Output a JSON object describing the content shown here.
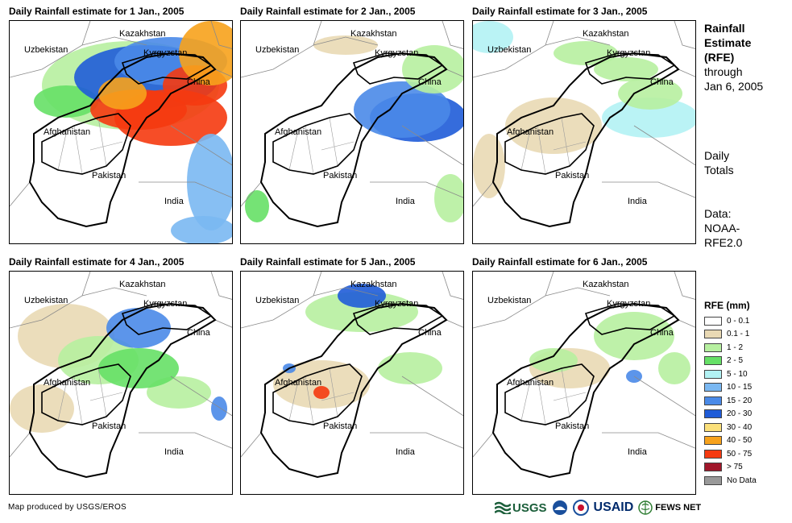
{
  "panels": [
    {
      "title": "Daily Rainfall estimate for 1 Jan., 2005"
    },
    {
      "title": "Daily Rainfall estimate for 2 Jan., 2005"
    },
    {
      "title": "Daily Rainfall estimate for 3 Jan., 2005"
    },
    {
      "title": "Daily Rainfall estimate for 4 Jan., 2005"
    },
    {
      "title": "Daily Rainfall estimate for 5 Jan., 2005"
    },
    {
      "title": "Daily Rainfall estimate for 6 Jan., 2005"
    }
  ],
  "place_labels": {
    "uzbekistan": "Uzbekistan",
    "kazakhstan": "Kazakhstan",
    "kyrgyzstan": "Kyrgyzstan",
    "china": "China",
    "afghanistan": "Afghanistan",
    "pakistan": "Pakistan",
    "india": "India"
  },
  "sidebar": {
    "title_line1": "Rainfall",
    "title_line2": "Estimate",
    "title_line3": "(RFE)",
    "through": "through",
    "date": "Jan 6, 2005",
    "daily1": "Daily",
    "daily2": "Totals",
    "data1": "Data:",
    "data2": "NOAA-",
    "data3": "RFE2.0"
  },
  "legend": {
    "title": "RFE (mm)",
    "items": [
      {
        "label": "0 - 0.1",
        "color": "#ffffff"
      },
      {
        "label": "0.1 - 1",
        "color": "#e9d9b4"
      },
      {
        "label": "1 - 2",
        "color": "#b7f0a0"
      },
      {
        "label": "2 - 5",
        "color": "#66e066"
      },
      {
        "label": "5 - 10",
        "color": "#b2f2f4"
      },
      {
        "label": "10 - 15",
        "color": "#7ab8f2"
      },
      {
        "label": "15 - 20",
        "color": "#4a8ae8"
      },
      {
        "label": "20 - 30",
        "color": "#1f5cd8"
      },
      {
        "label": "30 - 40",
        "color": "#fbe07a"
      },
      {
        "label": "40 - 50",
        "color": "#f7a21c"
      },
      {
        "label": "50 - 75",
        "color": "#f53a10"
      },
      {
        "label": "> 75",
        "color": "#a0162a"
      },
      {
        "label": "No Data",
        "color": "#999999"
      }
    ]
  },
  "credit": "Map produced by USGS/EROS",
  "logos": {
    "usgs": "USGS",
    "usaid": "USAID",
    "fewsnet": "FEWS NET"
  }
}
